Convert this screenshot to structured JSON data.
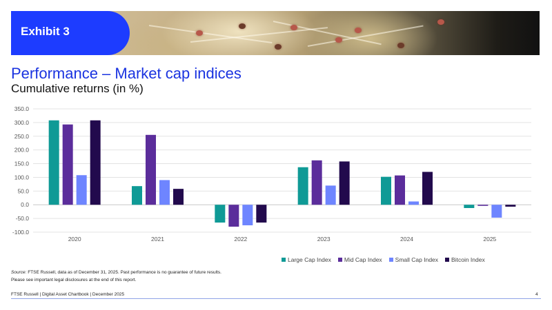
{
  "banner": {
    "exhibit_label": "Exhibit 3"
  },
  "title": "Performance – Market cap indices",
  "subtitle": "Cumulative returns (in %)",
  "chart_data": {
    "type": "bar",
    "categories": [
      "2020",
      "2021",
      "2022",
      "2023",
      "2024",
      "2025"
    ],
    "series": [
      {
        "name": "Large Cap Index",
        "color": "#0f9a96",
        "values": [
          308,
          68,
          -65,
          137,
          102,
          -12
        ]
      },
      {
        "name": "Mid Cap Index",
        "color": "#5b2d9b",
        "values": [
          293,
          255,
          -80,
          162,
          107,
          -4
        ]
      },
      {
        "name": "Small Cap Index",
        "color": "#6e85ff",
        "values": [
          108,
          90,
          -75,
          70,
          12,
          -47
        ]
      },
      {
        "name": "Bitcoin Index",
        "color": "#220a4d",
        "values": [
          308,
          58,
          -65,
          158,
          120,
          -7
        ]
      }
    ],
    "ylim": [
      -100,
      350
    ],
    "yticks": [
      "350.0",
      "300.0",
      "250.0",
      "200.0",
      "150.0",
      "100.0",
      "50.0",
      "0.0",
      "-50.0",
      "-100.0"
    ],
    "grid": true,
    "legend_position": "bottom-right"
  },
  "source": {
    "label": "Source:",
    "text": " FTSE Russell, data as of December 31, 2025. Past performance is no guarantee of future results.",
    "line2": "Please see important legal disclosures at the end of this report."
  },
  "footer": {
    "text": "FTSE Russell | Digital Asset Chartbook | December 2025",
    "page": "4"
  }
}
